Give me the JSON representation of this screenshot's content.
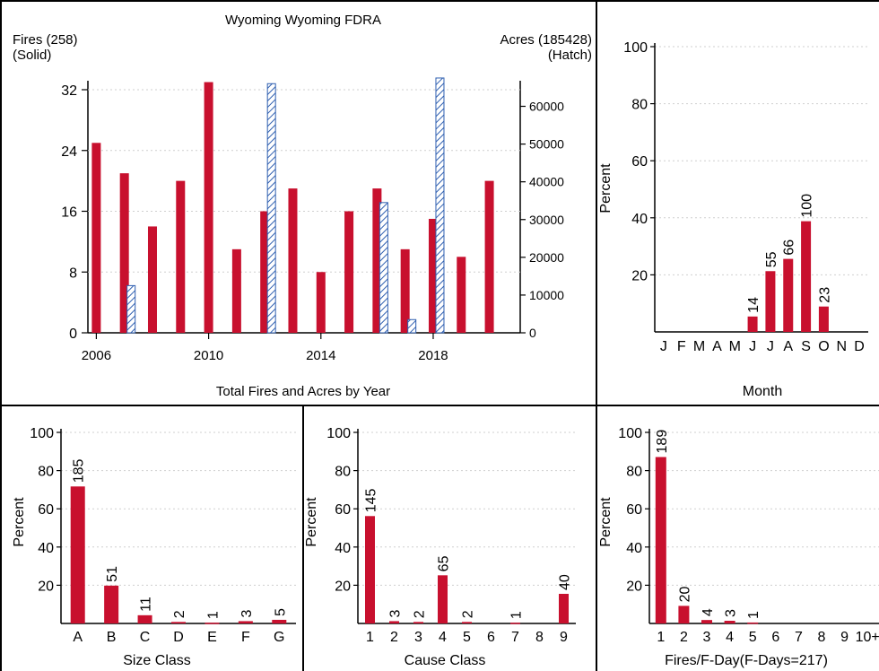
{
  "colors": {
    "solid": "#c8102e",
    "hatch": "#2f5fb0",
    "grid": "#cfcfcf",
    "axis": "#000000"
  },
  "chart_data": [
    {
      "id": "yearly",
      "type": "bar",
      "title": "Wyoming Wyoming FDRA",
      "left_label_1": "Fires (258)",
      "left_label_2": "(Solid)",
      "right_label_1": "Acres (185428)",
      "right_label_2": "(Hatch)",
      "xlabel": "Total Fires and Acres by Year",
      "x_tick_labels": [
        "2006",
        "2010",
        "2014",
        "2018"
      ],
      "x_ticks": [
        2006,
        2010,
        2014,
        2018
      ],
      "xlim": [
        2005.7,
        2021.1
      ],
      "ylim": [
        0,
        32
      ],
      "y_ticks": [
        0,
        8,
        16,
        24,
        32
      ],
      "y2lim": [
        0,
        66000
      ],
      "y2_ticks": [
        0,
        10000,
        20000,
        30000,
        40000,
        50000,
        60000
      ],
      "years": [
        2006,
        2007,
        2008,
        2009,
        2010,
        2011,
        2012,
        2013,
        2014,
        2015,
        2016,
        2017,
        2018,
        2019,
        2020
      ],
      "series": [
        {
          "name": "Fires",
          "values": [
            25,
            21,
            14,
            20,
            33,
            11,
            16,
            19,
            8,
            16,
            19,
            11,
            15,
            10,
            20
          ]
        },
        {
          "name": "Acres",
          "values": [
            0,
            12500,
            0,
            0,
            0,
            0,
            66000,
            0,
            0,
            0,
            34500,
            3500,
            67500,
            0,
            0
          ]
        }
      ]
    },
    {
      "id": "month",
      "type": "bar",
      "xlabel": "Month",
      "ylabel": "Percent",
      "ylim": [
        0,
        100
      ],
      "y_ticks": [
        20,
        40,
        60,
        80,
        100
      ],
      "categories": [
        "J",
        "F",
        "M",
        "A",
        "M",
        "J",
        "J",
        "A",
        "S",
        "O",
        "N",
        "D"
      ],
      "values": [
        0,
        0,
        0,
        0,
        0,
        5.4,
        21.3,
        25.6,
        38.8,
        8.9,
        0,
        0
      ],
      "data_labels": [
        "",
        "",
        "",
        "",
        "",
        "14",
        "55",
        "66",
        "100",
        "23",
        "",
        ""
      ]
    },
    {
      "id": "size",
      "type": "bar",
      "xlabel": "Size Class",
      "ylabel": "Percent",
      "ylim": [
        0,
        100
      ],
      "y_ticks": [
        20,
        40,
        60,
        80,
        100
      ],
      "categories": [
        "A",
        "B",
        "C",
        "D",
        "E",
        "F",
        "G"
      ],
      "values": [
        71.7,
        19.8,
        4.3,
        0.8,
        0.4,
        1.2,
        1.9
      ],
      "data_labels": [
        "185",
        "51",
        "11",
        "2",
        "1",
        "3",
        "5"
      ]
    },
    {
      "id": "cause",
      "type": "bar",
      "xlabel": "Cause Class",
      "ylabel": "Percent",
      "ylim": [
        0,
        100
      ],
      "y_ticks": [
        20,
        40,
        60,
        80,
        100
      ],
      "categories": [
        "1",
        "2",
        "3",
        "4",
        "5",
        "6",
        "7",
        "8",
        "9"
      ],
      "values": [
        56.2,
        1.2,
        0.8,
        25.2,
        0.8,
        0,
        0.4,
        0,
        15.5
      ],
      "data_labels": [
        "145",
        "3",
        "2",
        "65",
        "2",
        "",
        "1",
        "",
        "40"
      ]
    },
    {
      "id": "fday",
      "type": "bar",
      "xlabel": "Fires/F-Day(F-Days=217)",
      "ylabel": "Percent",
      "ylim": [
        0,
        100
      ],
      "y_ticks": [
        20,
        40,
        60,
        80,
        100
      ],
      "categories": [
        "1",
        "2",
        "3",
        "4",
        "5",
        "6",
        "7",
        "8",
        "9",
        "10+"
      ],
      "values": [
        87.1,
        9.2,
        1.8,
        1.4,
        0.5,
        0,
        0,
        0,
        0,
        0
      ],
      "data_labels": [
        "189",
        "20",
        "4",
        "3",
        "1",
        "",
        "",
        "",
        "",
        ""
      ]
    }
  ]
}
